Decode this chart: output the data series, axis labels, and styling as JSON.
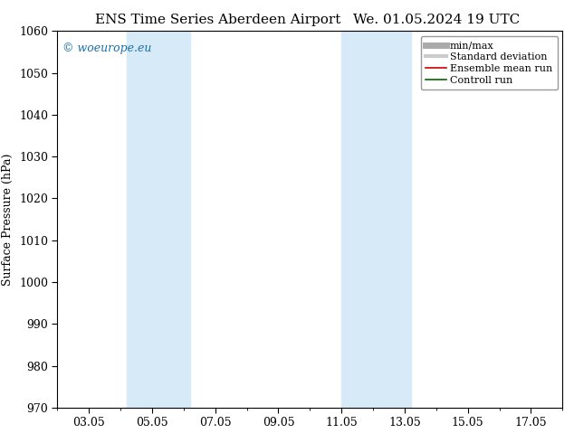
{
  "title_left": "ENS Time Series Aberdeen Airport",
  "title_right": "We. 01.05.2024 19 UTC",
  "ylabel": "Surface Pressure (hPa)",
  "ylim": [
    970,
    1060
  ],
  "yticks": [
    970,
    980,
    990,
    1000,
    1010,
    1020,
    1030,
    1040,
    1050,
    1060
  ],
  "xmin_date": "2024-05-02",
  "xmax_date": "2024-05-18",
  "xtick_labels": [
    "03.05",
    "05.05",
    "07.05",
    "09.05",
    "11.05",
    "13.05",
    "15.05",
    "17.05"
  ],
  "xtick_offsets_days": [
    1,
    3,
    5,
    7,
    9,
    11,
    13,
    15
  ],
  "shade_bands": [
    {
      "xmin_days": 2.2,
      "xmax_days": 4.2
    },
    {
      "xmin_days": 9.0,
      "xmax_days": 11.2
    }
  ],
  "shade_color": "#d6eaf8",
  "shade_alpha": 1.0,
  "background_color": "#ffffff",
  "watermark_text": "© woeurope.eu",
  "watermark_color": "#1a6fa8",
  "legend_entries": [
    {
      "label": "min/max",
      "color": "#aaaaaa",
      "lw": 5
    },
    {
      "label": "Standard deviation",
      "color": "#cccccc",
      "lw": 3
    },
    {
      "label": "Ensemble mean run",
      "color": "#cc0000",
      "lw": 1.2
    },
    {
      "label": "Controll run",
      "color": "#006600",
      "lw": 1.2
    }
  ],
  "title_fontsize": 11,
  "ylabel_fontsize": 9,
  "tick_fontsize": 9,
  "watermark_fontsize": 9,
  "legend_fontsize": 8
}
